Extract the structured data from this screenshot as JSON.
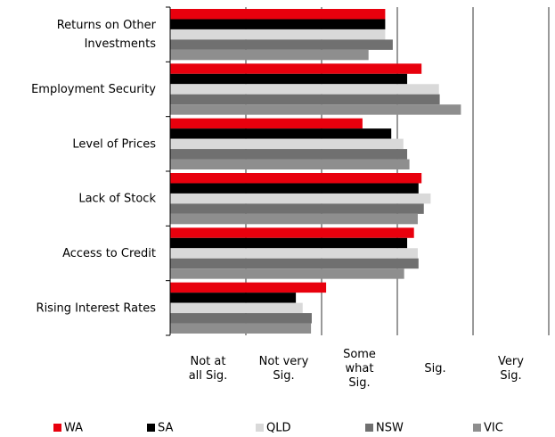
{
  "chart_data": {
    "type": "hbar",
    "categories": [
      "Returns on Other\nInvestments",
      "Employment Security",
      "Level of Prices",
      "Lack of Stock",
      "Access to Credit",
      "Rising Interest Rates"
    ],
    "series": [
      {
        "name": "WA",
        "color": "#e8000d",
        "values": [
          2.84,
          3.32,
          2.54,
          3.32,
          3.22,
          2.06
        ]
      },
      {
        "name": "SA",
        "color": "#000000",
        "values": [
          2.84,
          3.13,
          2.92,
          3.28,
          3.13,
          1.66
        ]
      },
      {
        "name": "QLD",
        "color": "#d9d9d9",
        "values": [
          2.84,
          3.55,
          3.08,
          3.44,
          3.27,
          1.75
        ]
      },
      {
        "name": "NSW",
        "color": "#707070",
        "values": [
          2.94,
          3.56,
          3.13,
          3.35,
          3.28,
          1.87
        ]
      },
      {
        "name": "VIC",
        "color": "#8e8e8e",
        "values": [
          2.62,
          3.84,
          3.16,
          3.27,
          3.09,
          1.86
        ]
      }
    ],
    "xlim": [
      0,
      5
    ],
    "xticks": [
      0,
      1,
      2,
      3,
      4,
      5
    ],
    "x_band_labels": [
      "Not at\nall Sig.",
      "Not very\nSig.",
      "Some\nwhat\nSig.",
      "Sig.",
      "Very\nSig."
    ],
    "grid": true,
    "legend": "bottom"
  }
}
